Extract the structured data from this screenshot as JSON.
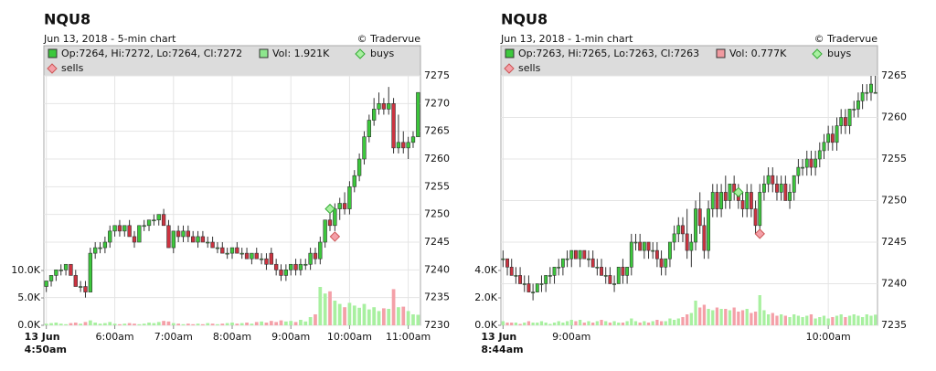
{
  "chart_data": [
    {
      "type": "candlestick",
      "title": "NQU8",
      "subtitle": "Jun 13, 2018 - 5-min chart",
      "credit": "© Tradervue",
      "legend": {
        "ohlc": "Op:7264, Hi:7272, Lo:7264, Cl:7272",
        "volume": "Vol: 1.921K",
        "volume_color": "#8ee68e",
        "buys": "buys",
        "sells": "sells"
      },
      "up_color": "#3cc83c",
      "down_color": "#cc3340",
      "candles": [
        [
          7237,
          7238,
          7236,
          7238
        ],
        [
          7238,
          7239,
          7237,
          7239
        ],
        [
          7239,
          7240,
          7238,
          7240
        ],
        [
          7240,
          7241,
          7239,
          7240
        ],
        [
          7240,
          7241,
          7239,
          7241
        ],
        [
          7241,
          7241,
          7239,
          7239
        ],
        [
          7239,
          7240,
          7237,
          7237
        ],
        [
          7237,
          7238,
          7236,
          7237
        ],
        [
          7237,
          7238,
          7235,
          7236
        ],
        [
          7236,
          7244,
          7236,
          7243
        ],
        [
          7243,
          7245,
          7242,
          7244
        ],
        [
          7244,
          7245,
          7243,
          7244
        ],
        [
          7244,
          7246,
          7243,
          7245
        ],
        [
          7245,
          7248,
          7244,
          7247
        ],
        [
          7247,
          7248,
          7246,
          7248
        ],
        [
          7248,
          7249,
          7246,
          7247
        ],
        [
          7247,
          7248,
          7246,
          7248
        ],
        [
          7248,
          7249,
          7246,
          7246
        ],
        [
          7246,
          7247,
          7244,
          7245
        ],
        [
          7245,
          7248,
          7245,
          7248
        ],
        [
          7248,
          7249,
          7247,
          7248
        ],
        [
          7248,
          7249,
          7247,
          7249
        ],
        [
          7249,
          7250,
          7248,
          7249
        ],
        [
          7249,
          7250,
          7248,
          7250
        ],
        [
          7250,
          7251,
          7248,
          7248
        ],
        [
          7248,
          7249,
          7244,
          7244
        ],
        [
          7244,
          7247,
          7243,
          7247
        ],
        [
          7247,
          7248,
          7245,
          7246
        ],
        [
          7246,
          7248,
          7245,
          7247
        ],
        [
          7247,
          7248,
          7245,
          7246
        ],
        [
          7246,
          7247,
          7245,
          7245
        ],
        [
          7245,
          7247,
          7244,
          7246
        ],
        [
          7246,
          7247,
          7245,
          7245
        ],
        [
          7245,
          7246,
          7244,
          7245
        ],
        [
          7245,
          7246,
          7244,
          7244
        ],
        [
          7244,
          7245,
          7243,
          7244
        ],
        [
          7244,
          7245,
          7243,
          7243
        ],
        [
          7243,
          7244,
          7242,
          7243
        ],
        [
          7243,
          7244,
          7242,
          7244
        ],
        [
          7244,
          7245,
          7243,
          7243
        ],
        [
          7243,
          7244,
          7242,
          7243
        ],
        [
          7243,
          7244,
          7242,
          7242
        ],
        [
          7242,
          7243,
          7241,
          7243
        ],
        [
          7243,
          7244,
          7242,
          7242
        ],
        [
          7242,
          7243,
          7241,
          7242
        ],
        [
          7242,
          7243,
          7240,
          7241
        ],
        [
          7243,
          7244,
          7241,
          7241
        ],
        [
          7241,
          7242,
          7239,
          7240
        ],
        [
          7240,
          7241,
          7238,
          7239
        ],
        [
          7239,
          7241,
          7238,
          7240
        ],
        [
          7240,
          7241,
          7239,
          7241
        ],
        [
          7241,
          7242,
          7239,
          7240
        ],
        [
          7240,
          7242,
          7239,
          7241
        ],
        [
          7241,
          7242,
          7240,
          7241
        ],
        [
          7241,
          7244,
          7240,
          7243
        ],
        [
          7243,
          7244,
          7241,
          7242
        ],
        [
          7242,
          7246,
          7241,
          7245
        ],
        [
          7245,
          7249,
          7244,
          7249
        ],
        [
          7249,
          7251,
          7247,
          7248
        ],
        [
          7248,
          7252,
          7247,
          7251
        ],
        [
          7251,
          7253,
          7249,
          7252
        ],
        [
          7252,
          7254,
          7250,
          7251
        ],
        [
          7251,
          7256,
          7250,
          7255
        ],
        [
          7255,
          7258,
          7254,
          7257
        ],
        [
          7257,
          7261,
          7256,
          7260
        ],
        [
          7260,
          7265,
          7259,
          7264
        ],
        [
          7264,
          7268,
          7263,
          7267
        ],
        [
          7267,
          7271,
          7266,
          7269
        ],
        [
          7269,
          7272,
          7268,
          7270
        ],
        [
          7270,
          7271,
          7268,
          7269
        ],
        [
          7269,
          7273,
          7268,
          7270
        ],
        [
          7270,
          7271,
          7261,
          7262
        ],
        [
          7262,
          7268,
          7261,
          7263
        ],
        [
          7263,
          7265,
          7261,
          7262
        ],
        [
          7262,
          7264,
          7260,
          7263
        ],
        [
          7263,
          7265,
          7262,
          7264
        ],
        [
          7264,
          7272,
          7264,
          7272
        ]
      ],
      "volume": {
        "values": [
          300,
          400,
          500,
          300,
          200,
          400,
          500,
          300,
          600,
          900,
          500,
          300,
          400,
          600,
          300,
          200,
          300,
          400,
          300,
          200,
          300,
          500,
          400,
          600,
          800,
          700,
          400,
          300,
          200,
          300,
          200,
          300,
          200,
          400,
          300,
          200,
          300,
          400,
          500,
          300,
          400,
          500,
          300,
          600,
          700,
          500,
          800,
          600,
          900,
          700,
          800,
          600,
          1000,
          700,
          1500,
          2000,
          7000,
          5800,
          6200,
          4500,
          3900,
          3300,
          4100,
          3600,
          3200,
          3900,
          2900,
          3300,
          2600,
          3100,
          3000,
          6600,
          3300,
          3400,
          2600,
          2000,
          1921
        ],
        "up_color": "#a8f0a0",
        "down_color": "#f4a0a8",
        "ylim": [
          0,
          45500
        ],
        "yticks": [
          {
            "value": 0,
            "label": "0.0K"
          },
          {
            "value": 5000,
            "label": "5.0K"
          },
          {
            "value": 10000,
            "label": "10.0K"
          }
        ]
      },
      "buys": [
        {
          "x": 58,
          "price": 7251
        }
      ],
      "sells": [
        {
          "x": 59,
          "price": 7246
        }
      ],
      "xlim": [
        -0.5,
        76.5
      ],
      "xticks": [
        {
          "value": 0,
          "label": "13 Jun",
          "label2": "4:50am"
        },
        {
          "value": 14,
          "label": "6:00am"
        },
        {
          "value": 26,
          "label": "7:00am"
        },
        {
          "value": 38,
          "label": "8:00am"
        },
        {
          "value": 50,
          "label": "9:00am"
        },
        {
          "value": 62,
          "label": "10:00am"
        },
        {
          "value": 74,
          "label": "11:00am"
        }
      ],
      "ylim": [
        7230,
        7275
      ],
      "yticks": [
        7230,
        7235,
        7240,
        7245,
        7250,
        7255,
        7260,
        7265,
        7270,
        7275
      ],
      "grid": true
    },
    {
      "type": "candlestick",
      "title": "NQU8",
      "subtitle": "Jun 13, 2018 - 1-min chart",
      "credit": "© Tradervue",
      "legend": {
        "ohlc": "Op:7263, Hi:7265, Lo:7263, Cl:7263",
        "volume": "Vol: 0.777K",
        "volume_color": "#f09aa0",
        "buys": "buys",
        "sells": "sells"
      },
      "up_color": "#3cc83c",
      "down_color": "#cc3340",
      "candles": [
        [
          7243,
          7244,
          7242,
          7243
        ],
        [
          7243,
          7243,
          7241,
          7242
        ],
        [
          7242,
          7243,
          7241,
          7241
        ],
        [
          7241,
          7242,
          7240,
          7241
        ],
        [
          7241,
          7242,
          7240,
          7240
        ],
        [
          7240,
          7241,
          7239,
          7240
        ],
        [
          7240,
          7241,
          7239,
          7239
        ],
        [
          7239,
          7240,
          7238,
          7239
        ],
        [
          7239,
          7240,
          7239,
          7240
        ],
        [
          7240,
          7241,
          7239,
          7240
        ],
        [
          7240,
          7241,
          7239,
          7241
        ],
        [
          7241,
          7242,
          7240,
          7241
        ],
        [
          7241,
          7242,
          7240,
          7242
        ],
        [
          7242,
          7243,
          7241,
          7242
        ],
        [
          7242,
          7243,
          7241,
          7243
        ],
        [
          7243,
          7244,
          7242,
          7243
        ],
        [
          7243,
          7244,
          7242,
          7244
        ],
        [
          7244,
          7244,
          7243,
          7243
        ],
        [
          7243,
          7244,
          7242,
          7244
        ],
        [
          7244,
          7244,
          7243,
          7243
        ],
        [
          7243,
          7244,
          7242,
          7243
        ],
        [
          7243,
          7244,
          7242,
          7242
        ],
        [
          7242,
          7243,
          7241,
          7242
        ],
        [
          7242,
          7243,
          7241,
          7241
        ],
        [
          7241,
          7242,
          7240,
          7241
        ],
        [
          7241,
          7242,
          7240,
          7240
        ],
        [
          7240,
          7241,
          7239,
          7240
        ],
        [
          7240,
          7242,
          7240,
          7242
        ],
        [
          7242,
          7243,
          7240,
          7241
        ],
        [
          7241,
          7242,
          7240,
          7242
        ],
        [
          7242,
          7246,
          7241,
          7245
        ],
        [
          7245,
          7246,
          7244,
          7245
        ],
        [
          7245,
          7246,
          7244,
          7244
        ],
        [
          7244,
          7245,
          7243,
          7245
        ],
        [
          7245,
          7245,
          7243,
          7244
        ],
        [
          7244,
          7245,
          7243,
          7244
        ],
        [
          7244,
          7245,
          7242,
          7243
        ],
        [
          7243,
          7244,
          7241,
          7242
        ],
        [
          7242,
          7243,
          7241,
          7243
        ],
        [
          7243,
          7245,
          7242,
          7245
        ],
        [
          7245,
          7247,
          7244,
          7246
        ],
        [
          7246,
          7248,
          7245,
          7247
        ],
        [
          7247,
          7248,
          7245,
          7246
        ],
        [
          7246,
          7249,
          7243,
          7244
        ],
        [
          7244,
          7246,
          7242,
          7245
        ],
        [
          7245,
          7250,
          7244,
          7249
        ],
        [
          7249,
          7251,
          7246,
          7247
        ],
        [
          7247,
          7248,
          7243,
          7244
        ],
        [
          7244,
          7250,
          7243,
          7249
        ],
        [
          7249,
          7252,
          7248,
          7251
        ],
        [
          7251,
          7252,
          7248,
          7249
        ],
        [
          7249,
          7252,
          7248,
          7251
        ],
        [
          7251,
          7253,
          7249,
          7250
        ],
        [
          7250,
          7252,
          7249,
          7252
        ],
        [
          7252,
          7253,
          7250,
          7251
        ],
        [
          7251,
          7252,
          7249,
          7250
        ],
        [
          7250,
          7251,
          7248,
          7249
        ],
        [
          7249,
          7252,
          7248,
          7251
        ],
        [
          7251,
          7252,
          7248,
          7249
        ],
        [
          7249,
          7250,
          7246,
          7247
        ],
        [
          7247,
          7252,
          7246,
          7251
        ],
        [
          7251,
          7253,
          7250,
          7252
        ],
        [
          7252,
          7254,
          7251,
          7253
        ],
        [
          7253,
          7254,
          7251,
          7252
        ],
        [
          7252,
          7253,
          7250,
          7251
        ],
        [
          7251,
          7253,
          7250,
          7252
        ],
        [
          7252,
          7253,
          7250,
          7250
        ],
        [
          7250,
          7252,
          7249,
          7251
        ],
        [
          7251,
          7253,
          7250,
          7253
        ],
        [
          7253,
          7255,
          7252,
          7254
        ],
        [
          7254,
          7255,
          7253,
          7254
        ],
        [
          7254,
          7256,
          7253,
          7255
        ],
        [
          7255,
          7256,
          7253,
          7254
        ],
        [
          7254,
          7256,
          7253,
          7255
        ],
        [
          7255,
          7257,
          7254,
          7256
        ],
        [
          7256,
          7258,
          7255,
          7257
        ],
        [
          7257,
          7259,
          7256,
          7258
        ],
        [
          7258,
          7259,
          7256,
          7257
        ],
        [
          7257,
          7260,
          7256,
          7259
        ],
        [
          7259,
          7261,
          7258,
          7260
        ],
        [
          7260,
          7261,
          7258,
          7259
        ],
        [
          7259,
          7261,
          7258,
          7261
        ],
        [
          7261,
          7262,
          7260,
          7261
        ],
        [
          7261,
          7263,
          7260,
          7262
        ],
        [
          7262,
          7264,
          7261,
          7263
        ],
        [
          7263,
          7264,
          7262,
          7263
        ],
        [
          7263,
          7265,
          7262,
          7264
        ],
        [
          7263,
          7265,
          7263,
          7263
        ]
      ],
      "volume": {
        "values": [
          300,
          200,
          200,
          200,
          100,
          200,
          300,
          200,
          200,
          300,
          200,
          100,
          200,
          300,
          200,
          300,
          400,
          300,
          400,
          200,
          300,
          200,
          300,
          400,
          300,
          200,
          300,
          200,
          200,
          300,
          500,
          300,
          200,
          300,
          200,
          300,
          400,
          300,
          300,
          500,
          400,
          500,
          600,
          800,
          900,
          1800,
          1300,
          1500,
          1200,
          1100,
          1300,
          1200,
          1200,
          1100,
          1300,
          1000,
          1100,
          1200,
          900,
          1000,
          2200,
          1100,
          800,
          900,
          700,
          800,
          700,
          600,
          800,
          700,
          600,
          700,
          800,
          500,
          600,
          700,
          500,
          600,
          700,
          800,
          600,
          700,
          800,
          700,
          600,
          800,
          700,
          777
        ],
        "up_color": "#a8f0a0",
        "down_color": "#f4a0a8",
        "ylim": [
          0,
          18200
        ],
        "yticks": [
          {
            "value": 0,
            "label": "0.0K"
          },
          {
            "value": 2000,
            "label": "2.0K"
          },
          {
            "value": 4000,
            "label": "4.0K"
          }
        ]
      },
      "buys": [
        {
          "x": 55,
          "price": 7251
        }
      ],
      "sells": [
        {
          "x": 60,
          "price": 7246
        }
      ],
      "xlim": [
        -0.5,
        87.5
      ],
      "xticks": [
        {
          "value": 0,
          "label": "13 Jun",
          "label2": "8:44am"
        },
        {
          "value": 16,
          "label": "9:00am"
        },
        {
          "value": 76,
          "label": "10:00am"
        }
      ],
      "ylim": [
        7235,
        7265
      ],
      "yticks": [
        7235,
        7240,
        7245,
        7250,
        7255,
        7260,
        7265
      ],
      "grid": true
    }
  ]
}
